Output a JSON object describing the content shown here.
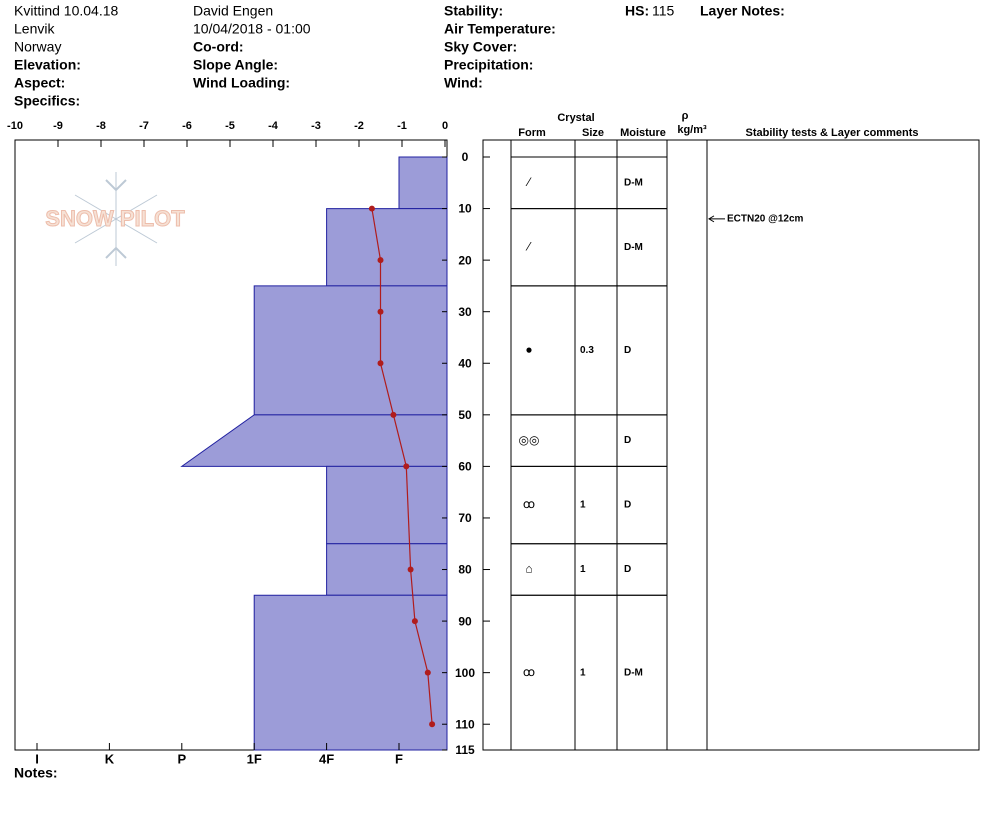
{
  "header": {
    "site": "Kvittind 10.04.18",
    "location": "Lenvik",
    "country": "Norway",
    "elevation": "Elevation:",
    "aspect": "Aspect:",
    "specifics": "Specifics:",
    "observer": "David Engen",
    "datetime": "10/04/2018 - 01:00",
    "coord": "Co-ord:",
    "slope_angle": "Slope Angle:",
    "wind_loading": "Wind Loading:",
    "stability": "Stability:",
    "air_temperature": "Air Temperature:",
    "sky_cover": "Sky Cover:",
    "precipitation": "Precipitation:",
    "wind": "Wind:",
    "hs_label": "HS:",
    "hs_value": 115,
    "layer_notes": "Layer Notes:"
  },
  "logo": "SNOW PILOT",
  "notes": "Notes:",
  "chart_data": {
    "type": "snow-profile",
    "xlim": [
      -10,
      0
    ],
    "xticks": [
      -10,
      -9,
      -8,
      -7,
      -6,
      -5,
      -4,
      -3,
      -2,
      -1,
      0
    ],
    "ylim": [
      0,
      115
    ],
    "yticks": [
      0,
      10,
      20,
      30,
      40,
      50,
      60,
      70,
      80,
      90,
      100,
      110,
      115
    ],
    "hardness_scale": [
      "I",
      "K",
      "P",
      "1F",
      "4F",
      "F"
    ],
    "bar_color": "#9c9cd8",
    "bar_edge": "#2020a0",
    "temperature": {
      "color": "#b01c1c",
      "depth": [
        10,
        20,
        30,
        40,
        50,
        60,
        80,
        90,
        100,
        110
      ],
      "values": [
        -1.7,
        -1.5,
        -1.5,
        -1.5,
        -1.2,
        -0.9,
        -0.8,
        -0.7,
        -0.4,
        -0.3
      ]
    },
    "columns": {
      "crystal": "Crystal",
      "form": "Form",
      "size": "Size",
      "moisture": "Moisture",
      "density_symbol": "ρ",
      "density_unit": "kg/m³",
      "comments": "Stability tests & Layer comments"
    },
    "layers": {
      "top": [
        0,
        10,
        25,
        50,
        60,
        75,
        85
      ],
      "bottom": [
        10,
        25,
        50,
        60,
        75,
        85,
        115
      ],
      "hardness_top": [
        "F",
        "4F",
        "1F",
        "1F",
        "4F",
        "4F",
        "1F"
      ],
      "hardness_bottom": [
        "F",
        "4F",
        "1F",
        "P",
        "4F",
        "4F",
        "1F"
      ],
      "form": [
        "⁄",
        "⁄",
        "●",
        "◎◎",
        "ꝏ",
        "⌂",
        "ꝏ"
      ],
      "size": [
        null,
        null,
        0.3,
        null,
        1,
        1,
        1
      ],
      "moisture": [
        "D-M",
        "D-M",
        "D",
        "D",
        "D",
        "D",
        "D-M"
      ]
    },
    "comments": [
      {
        "depth": 12,
        "text": "ECTN20 @12cm"
      }
    ]
  }
}
